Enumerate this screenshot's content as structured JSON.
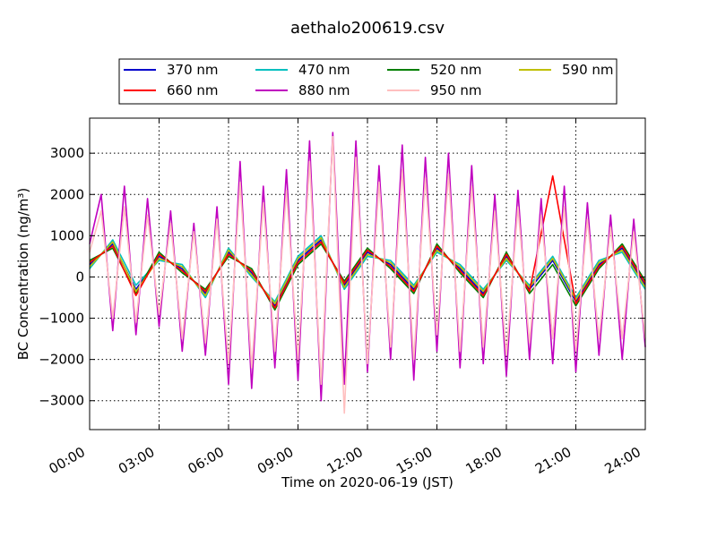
{
  "chart_data": {
    "type": "line",
    "title": "aethalo200619.csv",
    "xlabel": "Time on 2020-06-19 (JST)",
    "ylabel": "BC Concentration (ng/m³)",
    "xlim": [
      0,
      24
    ],
    "ylim": [
      -3700,
      3850
    ],
    "xticks": [
      {
        "hour": 0,
        "label": "00:00"
      },
      {
        "hour": 3,
        "label": "03:00"
      },
      {
        "hour": 6,
        "label": "06:00"
      },
      {
        "hour": 9,
        "label": "09:00"
      },
      {
        "hour": 12,
        "label": "12:00"
      },
      {
        "hour": 15,
        "label": "15:00"
      },
      {
        "hour": 18,
        "label": "18:00"
      },
      {
        "hour": 21,
        "label": "21:00"
      },
      {
        "hour": 24,
        "label": "24:00"
      }
    ],
    "yticks": [
      {
        "value": 3000,
        "label": "3000"
      },
      {
        "value": 2000,
        "label": "2000"
      },
      {
        "value": 1000,
        "label": "1000"
      },
      {
        "value": 0,
        "label": "0"
      },
      {
        "value": -1000,
        "label": "−1000"
      },
      {
        "value": -2000,
        "label": "−2000"
      },
      {
        "value": -3000,
        "label": "−3000"
      }
    ],
    "grid": true,
    "legend_position": "top",
    "series": [
      {
        "name": "370 nm",
        "color": "#0000cc",
        "x": [
          0,
          1,
          2,
          3,
          4,
          5,
          6,
          7,
          8,
          9,
          10,
          11,
          12,
          13,
          14,
          15,
          16,
          17,
          18,
          19,
          20,
          21,
          22,
          23,
          24
        ],
        "y": [
          300,
          800,
          -300,
          500,
          200,
          -400,
          600,
          100,
          -700,
          400,
          900,
          -200,
          600,
          300,
          -300,
          700,
          200,
          -400,
          500,
          -300,
          400,
          -600,
          300,
          700,
          -200
        ]
      },
      {
        "name": "470 nm",
        "color": "#00bfbf",
        "x": [
          0,
          1,
          2,
          3,
          4,
          5,
          6,
          7,
          8,
          9,
          10,
          11,
          12,
          13,
          14,
          15,
          16,
          17,
          18,
          19,
          20,
          21,
          22,
          23,
          24
        ],
        "y": [
          200,
          900,
          -200,
          400,
          300,
          -500,
          700,
          0,
          -600,
          500,
          1000,
          -300,
          500,
          400,
          -200,
          600,
          300,
          -300,
          400,
          -200,
          500,
          -500,
          400,
          600,
          -300
        ]
      },
      {
        "name": "520 nm",
        "color": "#007f00",
        "x": [
          0,
          1,
          2,
          3,
          4,
          5,
          6,
          7,
          8,
          9,
          10,
          11,
          12,
          13,
          14,
          15,
          16,
          17,
          18,
          19,
          20,
          21,
          22,
          23,
          24
        ],
        "y": [
          400,
          700,
          -400,
          600,
          100,
          -300,
          500,
          200,
          -800,
          300,
          800,
          -100,
          700,
          200,
          -400,
          800,
          100,
          -500,
          600,
          -400,
          300,
          -700,
          200,
          800,
          -100
        ]
      },
      {
        "name": "590 nm",
        "color": "#bfbf00",
        "x": [
          0,
          1,
          2,
          3,
          4,
          5,
          6,
          7,
          8,
          9,
          10,
          11,
          12,
          13,
          14,
          15,
          16,
          17,
          18,
          19,
          20,
          21,
          22,
          23,
          24
        ],
        "y": [
          250,
          850,
          -350,
          450,
          250,
          -450,
          650,
          50,
          -650,
          450,
          950,
          -250,
          550,
          350,
          -250,
          650,
          250,
          -350,
          450,
          -250,
          450,
          -550,
          350,
          650,
          -250
        ]
      },
      {
        "name": "660 nm",
        "color": "#ff0000",
        "x": [
          0,
          1,
          2,
          3,
          4,
          5,
          6,
          7,
          8,
          9,
          10,
          11,
          12,
          13,
          14,
          15,
          16,
          17,
          18,
          19,
          20,
          21,
          22,
          23,
          24
        ],
        "y": [
          350,
          750,
          -450,
          550,
          150,
          -350,
          550,
          150,
          -750,
          350,
          850,
          -150,
          650,
          250,
          -350,
          750,
          150,
          -450,
          550,
          -350,
          2450,
          -650,
          250,
          750,
          -150
        ]
      },
      {
        "name": "880 nm",
        "color": "#bf00bf",
        "x": [
          0,
          0.5,
          1,
          1.5,
          2,
          2.5,
          3,
          3.5,
          4,
          4.5,
          5,
          5.5,
          6,
          6.5,
          7,
          7.5,
          8,
          8.5,
          9,
          9.5,
          10,
          10.5,
          11,
          11.5,
          12,
          12.5,
          13,
          13.5,
          14,
          14.5,
          15,
          15.5,
          16,
          16.5,
          17,
          17.5,
          18,
          18.5,
          19,
          19.5,
          20,
          20.5,
          21,
          21.5,
          22,
          22.5,
          23,
          23.5,
          24
        ],
        "y": [
          800,
          2000,
          -1300,
          2200,
          -1400,
          1900,
          -1200,
          1600,
          -1800,
          1300,
          -1900,
          1700,
          -2600,
          2800,
          -2700,
          2200,
          -2200,
          2600,
          -2500,
          3300,
          -3000,
          3500,
          -2600,
          3300,
          -2300,
          2700,
          -2000,
          3200,
          -2500,
          2900,
          -1800,
          3000,
          -2200,
          2700,
          -2100,
          2000,
          -2400,
          2100,
          -2000,
          1900,
          -2100,
          2200,
          -2300,
          1800,
          -1900,
          1500,
          -2000,
          1400,
          -1700
        ]
      },
      {
        "name": "950 nm",
        "color": "#ffbfbf",
        "x": [
          0,
          0.5,
          1,
          1.5,
          2,
          2.5,
          3,
          3.5,
          4,
          4.5,
          5,
          5.5,
          6,
          6.5,
          7,
          7.5,
          8,
          8.5,
          9,
          9.5,
          10,
          10.5,
          11,
          11.5,
          12,
          12.5,
          13,
          13.5,
          14,
          14.5,
          15,
          15.5,
          16,
          16.5,
          17,
          17.5,
          18,
          18.5,
          19,
          19.5,
          20,
          20.5,
          21,
          21.5,
          22,
          22.5,
          23,
          23.5,
          24
        ],
        "y": [
          600,
          1600,
          -1000,
          1700,
          -1100,
          1500,
          -900,
          1300,
          -1500,
          1100,
          -1600,
          1400,
          -2100,
          2300,
          -2200,
          1800,
          -1800,
          2100,
          -2000,
          2800,
          -2600,
          3400,
          -3300,
          2900,
          -2100,
          2300,
          -1700,
          2600,
          -2000,
          2400,
          -1400,
          2500,
          -1800,
          2200,
          -1700,
          1600,
          -1900,
          1700,
          -1600,
          1500,
          -1500,
          1700,
          -1800,
          1400,
          -1500,
          1200,
          -1500,
          1100,
          -1500
        ]
      }
    ]
  }
}
